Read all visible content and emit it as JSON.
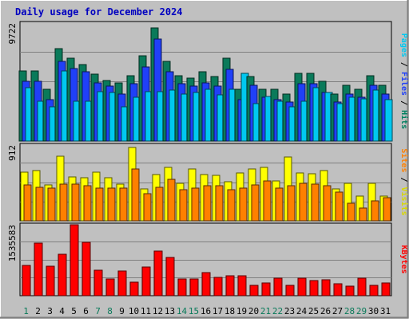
{
  "chart_data": {
    "type": "bar",
    "title": "Daily usage for December 2024",
    "categories": [
      "1",
      "2",
      "3",
      "4",
      "5",
      "6",
      "7",
      "8",
      "9",
      "10",
      "11",
      "12",
      "13",
      "14",
      "15",
      "16",
      "17",
      "18",
      "19",
      "20",
      "21",
      "22",
      "23",
      "24",
      "25",
      "26",
      "27",
      "28",
      "29",
      "30",
      "31"
    ],
    "weekend_days": [
      1,
      7,
      8,
      14,
      15,
      21,
      22,
      28,
      29
    ],
    "panels": [
      {
        "name": "hits-files-pages",
        "ylabel_parts": [
          "Pages",
          "Files",
          "Hits"
        ],
        "ylabel_colors": [
          "#00c8f0",
          "#2040f8",
          "#008060"
        ],
        "max_label": "9722",
        "ymax": 9722,
        "series": [
          {
            "name": "Hits",
            "color": "#0a7a5a",
            "values": [
              5800,
              5800,
              4300,
              7600,
              6800,
              6300,
              5500,
              5000,
              4800,
              5400,
              7000,
              9300,
              6600,
              5400,
              5200,
              5700,
              5300,
              6800,
              4300,
              5300,
              4300,
              4300,
              3900,
              5600,
              5600,
              4900,
              3900,
              4600,
              4300,
              5400,
              4600
            ]
          },
          {
            "name": "Files",
            "color": "#2040f8",
            "values": [
              4900,
              4900,
              3400,
              6600,
              6000,
              5700,
              4800,
              4500,
              3900,
              4700,
              6100,
              8400,
              5700,
              4700,
              4500,
              4800,
              4500,
              5900,
              3400,
              4600,
              3600,
              3400,
              3200,
              4700,
              4700,
              4000,
              3200,
              3900,
              3600,
              4600,
              3900
            ]
          },
          {
            "name": "Pages",
            "color": "#00c8f0",
            "values": [
              4400,
              3300,
              2800,
              5800,
              3300,
              3300,
              4100,
              4000,
              2800,
              3600,
              4100,
              4100,
              4200,
              3900,
              4000,
              4300,
              3800,
              4300,
              5600,
              3100,
              3700,
              3300,
              2800,
              3300,
              4400,
              4000,
              3100,
              3600,
              3500,
              4200,
              3400
            ]
          }
        ]
      },
      {
        "name": "visits-sites",
        "ylabel_parts": [
          "Sites",
          "Visits"
        ],
        "ylabel_colors": [
          "#ff8000",
          "#d8d800"
        ],
        "max_label": "912",
        "ymax": 912,
        "series": [
          {
            "name": "Visits",
            "color": "#ffff00",
            "values": [
              590,
              600,
              430,
              780,
              530,
              520,
              590,
              520,
              440,
              880,
              380,
              560,
              640,
              450,
              620,
              560,
              550,
              470,
              580,
              620,
              640,
              480,
              770,
              580,
              570,
              600,
              380,
              450,
              300,
              450,
              300
            ]
          },
          {
            "name": "Sites",
            "color": "#ff8000",
            "values": [
              430,
              400,
              390,
              440,
              440,
              420,
              390,
              390,
              390,
              620,
              330,
              400,
              500,
              370,
              390,
              420,
              420,
              370,
              390,
              430,
              480,
              390,
              420,
              450,
              440,
              420,
              350,
              210,
              150,
              240,
              280
            ]
          }
        ]
      },
      {
        "name": "kbytes",
        "ylabel_parts": [
          "KBytes"
        ],
        "ylabel_colors": [
          "#ff0000"
        ],
        "max_label": "1535583",
        "ymax": 1535583,
        "series": [
          {
            "name": "KBytes",
            "color": "#ff0000",
            "values": [
              650000,
              1140000,
              640000,
              900000,
              1530000,
              1160000,
              560000,
              360000,
              530000,
              290000,
              620000,
              970000,
              830000,
              370000,
              370000,
              500000,
              390000,
              430000,
              430000,
              230000,
              280000,
              380000,
              220000,
              380000,
              330000,
              340000,
              260000,
              210000,
              380000,
              220000,
              280000
            ]
          }
        ]
      }
    ]
  }
}
